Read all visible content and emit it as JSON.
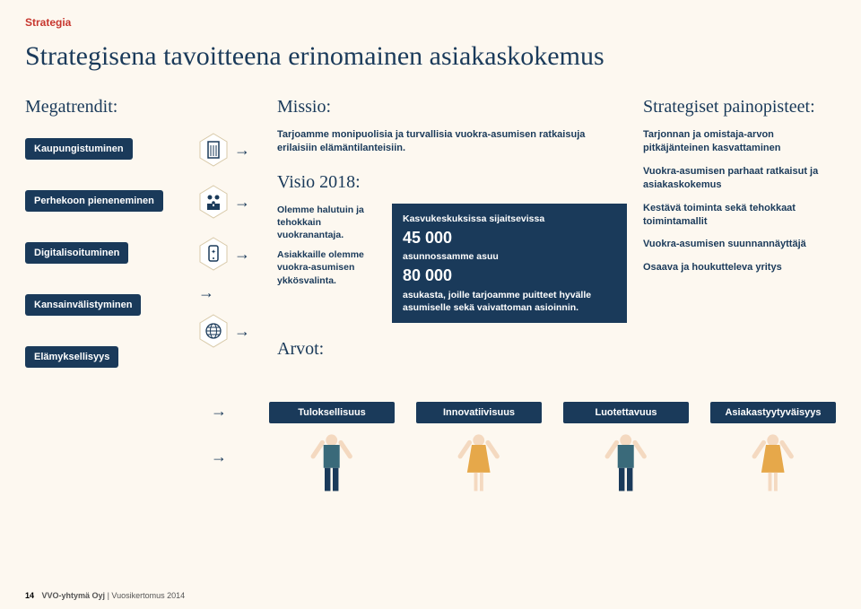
{
  "section_label": "Strategia",
  "main_title": "Strategisena tavoitteena erinomainen asiakaskokemus",
  "colors": {
    "navy": "#1a3a5a",
    "red": "#c7362e",
    "cream": "#fdf8f0",
    "white": "#ffffff",
    "man": "#3a6a7a",
    "woman": "#e6a84a"
  },
  "megatrends": {
    "title": "Megatrendit:",
    "items": [
      "Kaupungistuminen",
      "Perhekoon pieneneminen",
      "Digitalisoituminen",
      "Kansainvälistyminen",
      "Elämyksellisyys"
    ],
    "icons": [
      "building",
      "family",
      "device",
      "globe",
      null
    ]
  },
  "missio": {
    "title": "Missio:",
    "text": "Tarjoamme monipuolisia ja turvallisia vuokra-asumisen ratkaisuja erilaisiin elämäntilanteisiin."
  },
  "visio": {
    "title": "Visio 2018:",
    "left": [
      "Olemme halutuin ja tehokkain vuokranantaja.",
      "Asiakkaille olemme vuokra-asumisen ykkösvalinta."
    ],
    "box": {
      "line1": "Kasvukeskuksissa sijaitsevissa",
      "n1": "45 000",
      "line2": "asunnossamme asuu",
      "n2": "80 000",
      "line3": "asukasta, joille tarjoamme puitteet hyvälle asumiselle sekä vaivattoman asioinnin."
    }
  },
  "priorities": {
    "title": "Strategiset painopisteet:",
    "items": [
      "Tarjonnan ja omistaja-arvon pitkäjänteinen kasvattaminen",
      "Vuokra-asumisen parhaat ratkaisut ja asiakaskokemus",
      "Kestävä toiminta sekä tehokkaat toimintamallit",
      "Vuokra-asumisen suunnannäyttäjä",
      "Osaava ja houkutteleva yritys"
    ]
  },
  "arvot": {
    "title": "Arvot:",
    "items": [
      "Tuloksellisuus",
      "Innovatiivisuus",
      "Luotettavuus",
      "Asiakastyytyväisyys"
    ],
    "person_types": [
      "man",
      "woman",
      "man",
      "woman"
    ]
  },
  "footer": {
    "page": "14",
    "company": "VVO-yhtymä Oyj",
    "sep": " | ",
    "doc": "Vuosikertomus 2014"
  }
}
